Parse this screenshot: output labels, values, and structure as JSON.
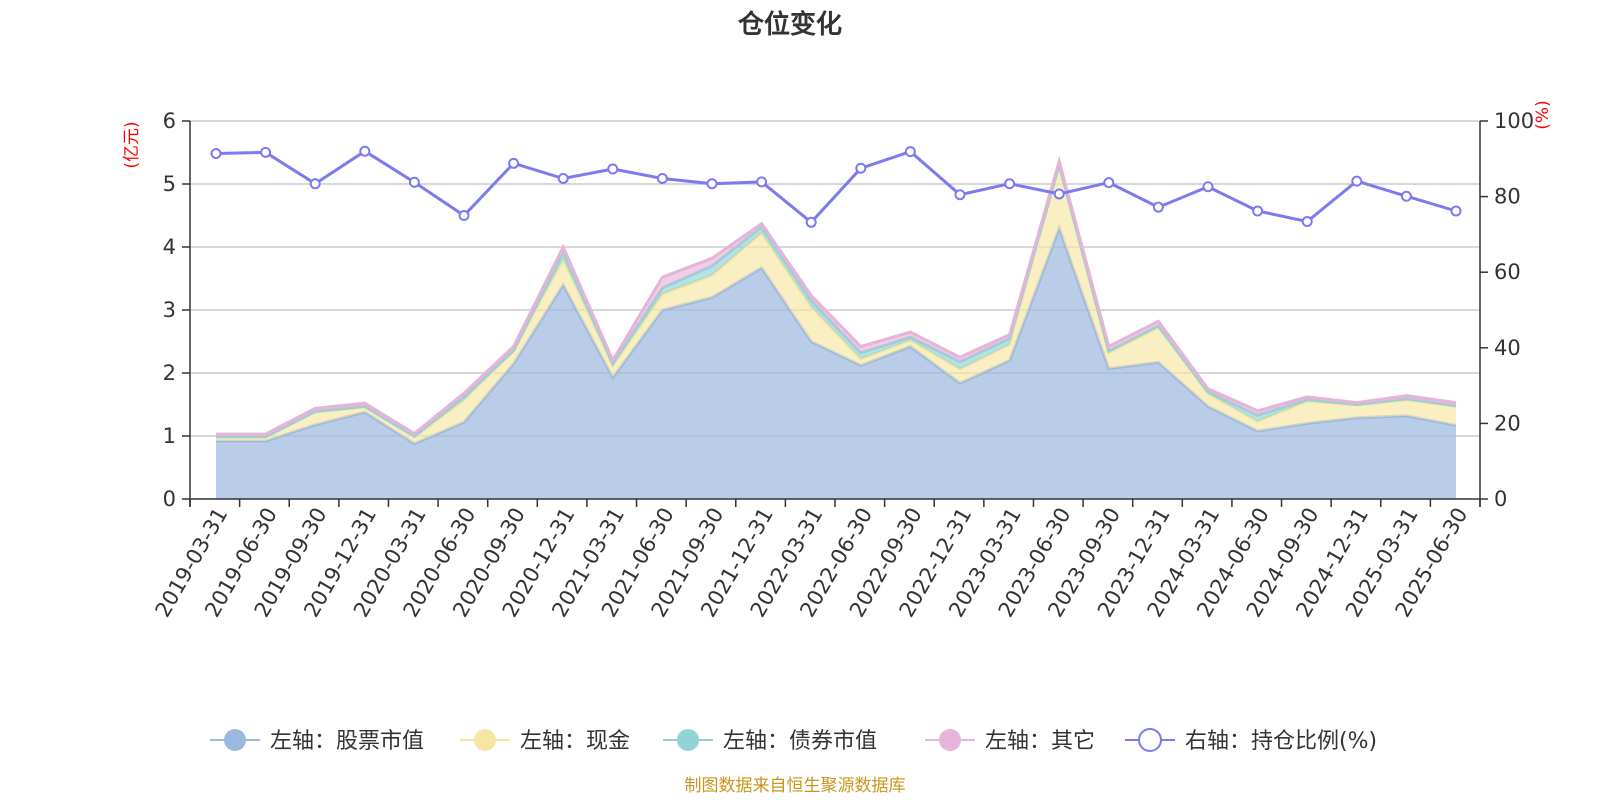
{
  "chart_data": {
    "type": "area",
    "title": "仓位变化",
    "left_axis_unit": "(亿元)",
    "right_axis_unit": "(%)",
    "ylim_left": [
      0,
      6
    ],
    "ylim_right": [
      0,
      100
    ],
    "left_ticks": [
      "0",
      "1",
      "2",
      "3",
      "4",
      "5",
      "6"
    ],
    "right_ticks": [
      "0",
      "20",
      "40",
      "60",
      "80",
      "100"
    ],
    "grid": true,
    "legend_position": "bottom",
    "stacked": true,
    "x": [
      "2019-03-31",
      "2019-06-30",
      "2019-09-30",
      "2019-12-31",
      "2020-03-31",
      "2020-06-30",
      "2020-09-30",
      "2020-12-31",
      "2021-03-31",
      "2021-06-30",
      "2021-09-30",
      "2021-12-31",
      "2022-03-31",
      "2022-06-30",
      "2022-09-30",
      "2022-12-31",
      "2023-03-31",
      "2023-06-30",
      "2023-09-30",
      "2023-12-31",
      "2024-03-31",
      "2024-06-30",
      "2024-09-30",
      "2024-12-31",
      "2025-03-31",
      "2025-06-30"
    ],
    "series": [
      {
        "name": "左轴：股票市值",
        "axis": "left",
        "color": "#9bb8e0",
        "values": [
          0.92,
          0.92,
          1.18,
          1.38,
          0.88,
          1.22,
          2.15,
          3.4,
          1.93,
          3.0,
          3.2,
          3.67,
          2.5,
          2.12,
          2.42,
          1.84,
          2.2,
          4.3,
          2.07,
          2.17,
          1.47,
          1.08,
          1.2,
          1.29,
          1.32,
          1.17
        ]
      },
      {
        "name": "左轴：现金",
        "axis": "left",
        "color": "#f7e6a3",
        "values": [
          0.06,
          0.06,
          0.2,
          0.08,
          0.1,
          0.35,
          0.2,
          0.4,
          0.18,
          0.25,
          0.35,
          0.55,
          0.55,
          0.1,
          0.1,
          0.22,
          0.25,
          0.99,
          0.25,
          0.55,
          0.2,
          0.15,
          0.35,
          0.2,
          0.25,
          0.3
        ]
      },
      {
        "name": "左轴：债券市值",
        "axis": "left",
        "color": "#8fd3d7",
        "values": [
          0.01,
          0.01,
          0.01,
          0.01,
          0.02,
          0.05,
          0.01,
          0.12,
          0.04,
          0.1,
          0.15,
          0.1,
          0.1,
          0.1,
          0.05,
          0.12,
          0.1,
          0.02,
          0.03,
          0.03,
          0.03,
          0.1,
          0.03,
          0.01,
          0.02,
          0.01
        ]
      },
      {
        "name": "左轴：其它",
        "axis": "left",
        "color": "#e6b3d9",
        "values": [
          0.04,
          0.04,
          0.05,
          0.05,
          0.04,
          0.06,
          0.06,
          0.08,
          0.05,
          0.17,
          0.12,
          0.05,
          0.08,
          0.1,
          0.08,
          0.07,
          0.06,
          0.05,
          0.07,
          0.07,
          0.05,
          0.07,
          0.04,
          0.03,
          0.05,
          0.05
        ]
      },
      {
        "name": "右轴：持仓比例(%)",
        "axis": "right",
        "color": "#7b7bef",
        "values": [
          91.4,
          91.7,
          83.4,
          92.0,
          83.8,
          75.0,
          88.8,
          84.8,
          87.3,
          84.8,
          83.4,
          83.9,
          73.2,
          87.5,
          91.9,
          80.5,
          83.4,
          80.7,
          83.7,
          77.2,
          82.6,
          76.2,
          73.4,
          84.1,
          80.1,
          76.2
        ]
      }
    ],
    "source": "制图数据来自恒生聚源数据库"
  }
}
